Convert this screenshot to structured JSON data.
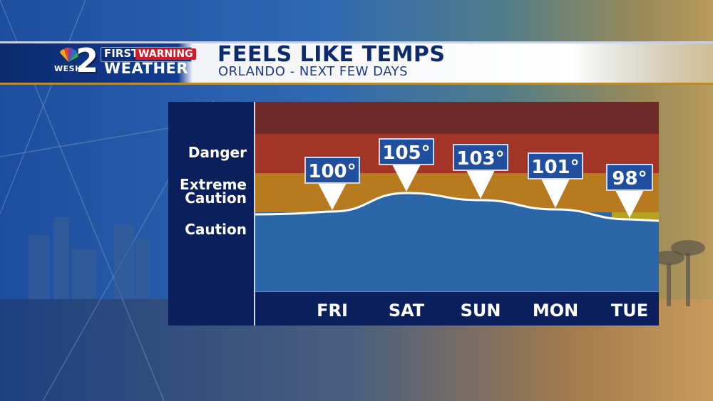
{
  "header": {
    "network_number": "2",
    "station": "WESH",
    "brand_first": "FIRST",
    "brand_warning": "WARNING",
    "brand_weather": "WEATHER",
    "title": "FEELS LIKE TEMPS",
    "subtitle": "ORLANDO - NEXT FEW DAYS"
  },
  "colors": {
    "danger": "#a33526",
    "danger_top": "#6e2a28",
    "extreme_caution": "#b77a1f",
    "caution_marker": "#b6a21e",
    "safe": "#2a66a8",
    "label_panel": "#0b1f5c",
    "callout_box": "#1f4f9e",
    "callout_border": "#cfd9ee"
  },
  "chart_data": {
    "type": "line",
    "title": "FEELS LIKE TEMPS",
    "categories": [
      "FRI",
      "SAT",
      "SUN",
      "MON",
      "TUE"
    ],
    "values": [
      100,
      105,
      103,
      101,
      98
    ],
    "value_labels": [
      "100°",
      "105°",
      "103°",
      "101°",
      "98°"
    ],
    "units": "°F",
    "ylim": [
      85,
      120
    ],
    "zones": [
      {
        "label": "Danger",
        "from": 103,
        "to": 115
      },
      {
        "label": "Extreme Caution",
        "from": 90,
        "to": 103
      },
      {
        "label": "Caution",
        "from": 80,
        "to": 90
      }
    ],
    "zone_label_lines": {
      "danger": [
        "Danger"
      ],
      "extreme_caution": [
        "Extreme",
        "Caution"
      ],
      "caution": [
        "Caution"
      ]
    },
    "grid": true,
    "legend": "none"
  }
}
